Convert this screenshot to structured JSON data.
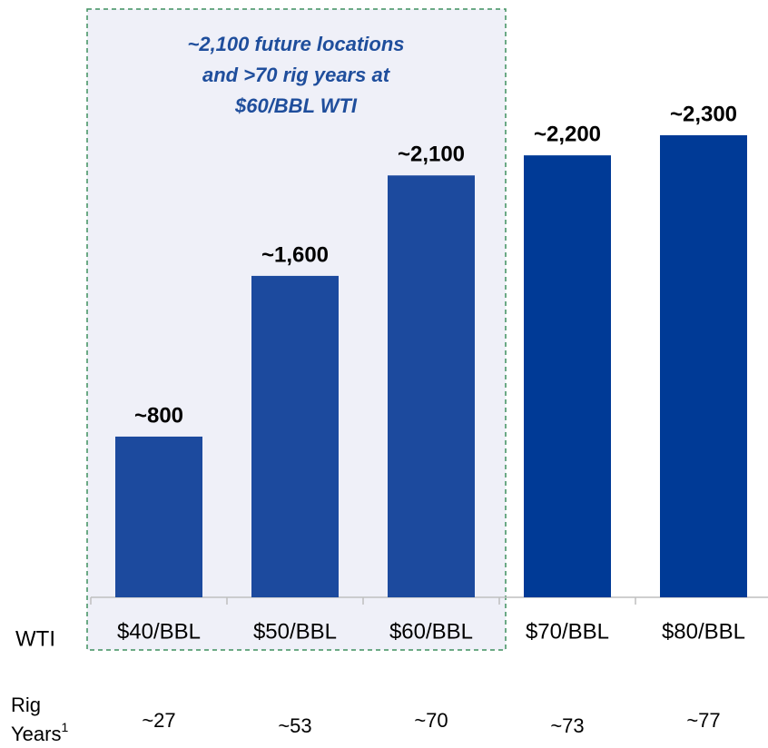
{
  "chart_data": {
    "type": "bar",
    "annotation": [
      "~2,100 future locations",
      "and >70 rig years at",
      "$60/BBL WTI"
    ],
    "x_label": "WTI",
    "categories": [
      "$40/BBL",
      "$50/BBL",
      "$60/BBL",
      "$70/BBL",
      "$80/BBL"
    ],
    "values": [
      800,
      1600,
      2100,
      2200,
      2300
    ],
    "value_labels": [
      "~800",
      "~1,600",
      "~2,100",
      "~2,200",
      "~2,300"
    ],
    "colors": [
      "#1c4a9e",
      "#1c4a9e",
      "#1c4a9e",
      "#003a96",
      "#003a96"
    ],
    "row_label": [
      "Rig",
      "Years"
    ],
    "row_label_note": "1",
    "rig_years": [
      "~27",
      "~53",
      "~70",
      "~73",
      "~77"
    ]
  }
}
